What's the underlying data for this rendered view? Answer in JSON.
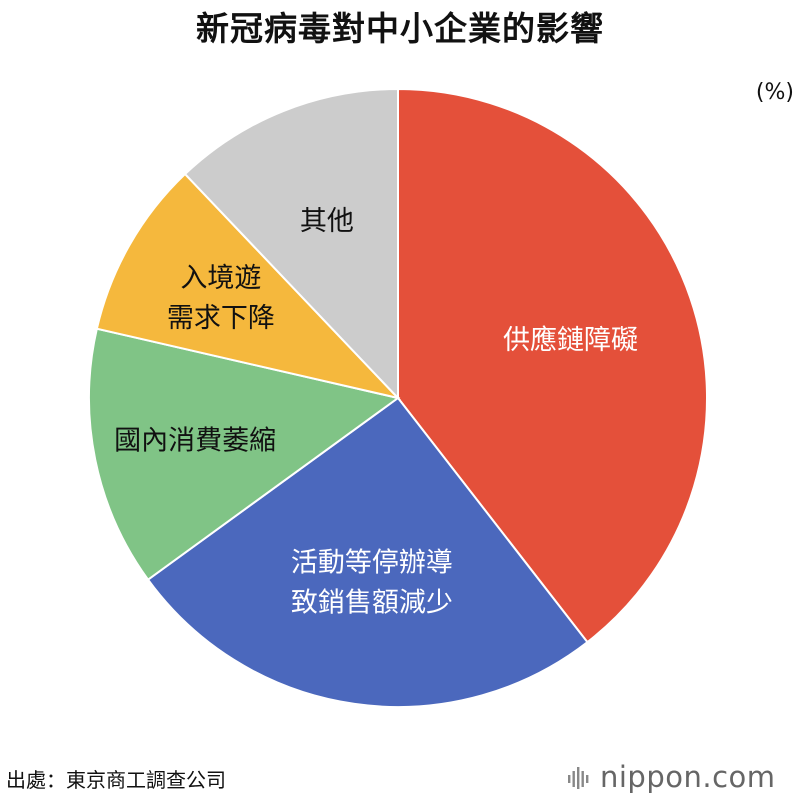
{
  "chart_data": {
    "type": "pie",
    "title": "新冠病毒對中小企業的影響",
    "unit": "(%)",
    "slices": [
      {
        "label_lines": [
          "供應鏈障礙"
        ],
        "value": 39.5,
        "color": "#e4503a",
        "label_color": "#ffffff"
      },
      {
        "label_lines": [
          "活動等停辦導",
          "致銷售額減少"
        ],
        "value": 25.5,
        "color": "#4b68bd",
        "label_color": "#ffffff"
      },
      {
        "label_lines": [
          "國內消費萎縮"
        ],
        "value": 13.6,
        "color": "#80c486",
        "label_color": "#111111"
      },
      {
        "label_lines": [
          "入境遊",
          "需求下降"
        ],
        "value": 9.3,
        "color": "#f5b83d",
        "label_color": "#111111"
      },
      {
        "label_lines": [
          "其他"
        ],
        "value": 12.1,
        "color": "#cccccc",
        "label_color": "#111111"
      }
    ]
  },
  "footer": {
    "source": "出處：東京商工調查公司",
    "brand": "nippon.com"
  }
}
